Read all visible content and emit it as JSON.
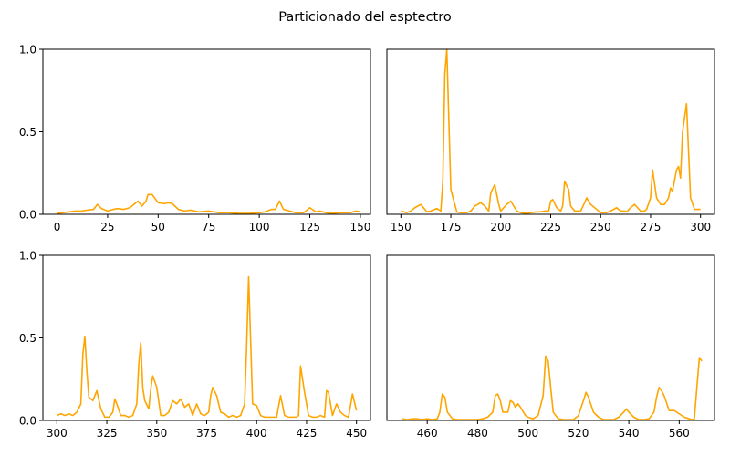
{
  "chart_data": {
    "title": "Particionado del esptectro",
    "line_color": "#ffa500",
    "subplots": [
      {
        "type": "line",
        "position": "top-left",
        "xlim": [
          -7,
          155
        ],
        "ylim": [
          0,
          1
        ],
        "xticks": [
          0,
          25,
          50,
          75,
          100,
          125,
          150
        ],
        "yticks": [
          0.0,
          0.5,
          1.0
        ],
        "ytick_labels": [
          "0.0",
          "0.5",
          "1.0"
        ],
        "show_yticks": true,
        "x": [
          0,
          3,
          6,
          9,
          12,
          15,
          18,
          20,
          22,
          25,
          28,
          30,
          33,
          36,
          40,
          42,
          44,
          45,
          47,
          50,
          53,
          55,
          57,
          60,
          63,
          66,
          70,
          75,
          80,
          85,
          90,
          95,
          100,
          103,
          106,
          108,
          110,
          112,
          115,
          118,
          120,
          122,
          125,
          128,
          130,
          133,
          136,
          140,
          145,
          148,
          150
        ],
        "y": [
          0.005,
          0.01,
          0.015,
          0.02,
          0.02,
          0.025,
          0.03,
          0.06,
          0.035,
          0.02,
          0.03,
          0.035,
          0.03,
          0.04,
          0.08,
          0.05,
          0.08,
          0.12,
          0.12,
          0.07,
          0.065,
          0.07,
          0.065,
          0.03,
          0.02,
          0.025,
          0.015,
          0.02,
          0.01,
          0.01,
          0.005,
          0.005,
          0.01,
          0.015,
          0.03,
          0.03,
          0.08,
          0.03,
          0.02,
          0.01,
          0.01,
          0.01,
          0.04,
          0.015,
          0.02,
          0.01,
          0.005,
          0.01,
          0.01,
          0.02,
          0.015
        ]
      },
      {
        "type": "line",
        "position": "top-right",
        "xlim": [
          143,
          307
        ],
        "ylim": [
          0,
          1
        ],
        "xticks": [
          150,
          175,
          200,
          225,
          250,
          275,
          300
        ],
        "yticks": [
          0.0,
          0.5,
          1.0
        ],
        "ytick_labels": [
          "0.0",
          "0.5",
          "1.0"
        ],
        "show_yticks": false,
        "x": [
          150,
          153,
          155,
          157,
          160,
          163,
          165,
          168,
          170,
          171,
          172,
          173,
          175,
          178,
          180,
          183,
          185,
          187,
          190,
          192,
          194,
          195,
          197,
          199,
          200,
          203,
          205,
          208,
          210,
          213,
          215,
          218,
          220,
          222,
          224,
          225,
          226,
          228,
          230,
          231,
          232,
          234,
          235,
          237,
          240,
          242,
          243,
          245,
          248,
          250,
          253,
          255,
          258,
          260,
          262,
          263,
          265,
          267,
          270,
          272,
          273,
          275,
          276,
          278,
          280,
          282,
          284,
          285,
          286,
          288,
          289,
          290,
          291,
          293,
          295,
          297,
          300
        ],
        "y": [
          0.02,
          0.01,
          0.02,
          0.04,
          0.06,
          0.015,
          0.02,
          0.035,
          0.02,
          0.2,
          0.85,
          1.0,
          0.15,
          0.015,
          0.01,
          0.01,
          0.02,
          0.05,
          0.07,
          0.05,
          0.02,
          0.13,
          0.18,
          0.06,
          0.02,
          0.06,
          0.08,
          0.02,
          0.01,
          0.005,
          0.01,
          0.015,
          0.015,
          0.02,
          0.02,
          0.08,
          0.09,
          0.04,
          0.02,
          0.05,
          0.2,
          0.15,
          0.05,
          0.02,
          0.02,
          0.07,
          0.1,
          0.06,
          0.03,
          0.01,
          0.01,
          0.02,
          0.04,
          0.02,
          0.02,
          0.015,
          0.04,
          0.06,
          0.02,
          0.02,
          0.03,
          0.1,
          0.27,
          0.1,
          0.06,
          0.06,
          0.1,
          0.16,
          0.14,
          0.27,
          0.29,
          0.22,
          0.5,
          0.67,
          0.1,
          0.03,
          0.03
        ]
      },
      {
        "type": "line",
        "position": "bottom-left",
        "xlim": [
          293,
          457
        ],
        "ylim": [
          0,
          1
        ],
        "xticks": [
          300,
          325,
          350,
          375,
          400,
          425,
          450
        ],
        "yticks": [
          0.0,
          0.5,
          1.0
        ],
        "ytick_labels": [
          "0.0",
          "0.5",
          "1.0"
        ],
        "show_yticks": true,
        "x": [
          300,
          302,
          304,
          306,
          308,
          310,
          312,
          313,
          314,
          315,
          316,
          318,
          320,
          322,
          324,
          326,
          328,
          329,
          330,
          332,
          334,
          336,
          338,
          340,
          341,
          342,
          343,
          344,
          346,
          347,
          348,
          350,
          352,
          354,
          356,
          358,
          360,
          362,
          364,
          366,
          368,
          370,
          372,
          374,
          376,
          377,
          378,
          380,
          382,
          384,
          386,
          388,
          390,
          392,
          394,
          395,
          396,
          398,
          400,
          402,
          404,
          406,
          408,
          410,
          412,
          414,
          416,
          418,
          420,
          421,
          422,
          424,
          426,
          428,
          430,
          432,
          434,
          435,
          436,
          438,
          440,
          442,
          444,
          446,
          448,
          450
        ],
        "y": [
          0.03,
          0.04,
          0.03,
          0.04,
          0.03,
          0.05,
          0.1,
          0.4,
          0.51,
          0.3,
          0.14,
          0.12,
          0.18,
          0.07,
          0.02,
          0.02,
          0.05,
          0.13,
          0.1,
          0.03,
          0.03,
          0.02,
          0.03,
          0.1,
          0.34,
          0.47,
          0.2,
          0.12,
          0.07,
          0.19,
          0.27,
          0.2,
          0.03,
          0.03,
          0.05,
          0.12,
          0.1,
          0.13,
          0.08,
          0.1,
          0.03,
          0.1,
          0.04,
          0.03,
          0.05,
          0.15,
          0.2,
          0.15,
          0.05,
          0.04,
          0.02,
          0.03,
          0.02,
          0.03,
          0.1,
          0.45,
          0.87,
          0.1,
          0.09,
          0.03,
          0.02,
          0.02,
          0.02,
          0.02,
          0.15,
          0.03,
          0.02,
          0.02,
          0.02,
          0.03,
          0.33,
          0.17,
          0.03,
          0.02,
          0.02,
          0.03,
          0.02,
          0.18,
          0.17,
          0.03,
          0.1,
          0.05,
          0.03,
          0.02,
          0.16,
          0.06
        ]
      },
      {
        "type": "line",
        "position": "bottom-right",
        "xlim": [
          444,
          574
        ],
        "ylim": [
          0,
          1
        ],
        "xticks": [
          460,
          480,
          500,
          520,
          540,
          560
        ],
        "yticks": [
          0.0,
          0.5,
          1.0
        ],
        "ytick_labels": [
          "0.0",
          "0.5",
          "1.0"
        ],
        "show_yticks": false,
        "x": [
          450,
          452,
          454,
          456,
          458,
          460,
          462,
          464,
          465,
          466,
          467,
          468,
          470,
          472,
          474,
          476,
          478,
          480,
          482,
          484,
          486,
          487,
          488,
          489,
          490,
          492,
          493,
          494,
          495,
          496,
          497,
          499,
          500,
          502,
          504,
          506,
          507,
          508,
          509,
          510,
          512,
          514,
          516,
          518,
          520,
          522,
          523,
          524,
          526,
          528,
          530,
          532,
          534,
          536,
          538,
          539,
          540,
          542,
          544,
          546,
          548,
          550,
          551,
          552,
          553,
          554,
          556,
          558,
          560,
          562,
          564,
          565,
          566,
          567,
          568,
          569
        ],
        "y": [
          0.01,
          0.005,
          0.01,
          0.01,
          0.005,
          0.01,
          0.005,
          0.01,
          0.05,
          0.16,
          0.14,
          0.05,
          0.01,
          0.005,
          0.005,
          0.005,
          0.005,
          0.005,
          0.01,
          0.02,
          0.05,
          0.15,
          0.16,
          0.12,
          0.05,
          0.05,
          0.12,
          0.11,
          0.08,
          0.1,
          0.08,
          0.03,
          0.02,
          0.01,
          0.03,
          0.15,
          0.39,
          0.36,
          0.2,
          0.05,
          0.01,
          0.005,
          0.005,
          0.005,
          0.03,
          0.12,
          0.17,
          0.14,
          0.05,
          0.02,
          0.005,
          0.005,
          0.005,
          0.02,
          0.05,
          0.07,
          0.05,
          0.02,
          0.005,
          0.005,
          0.01,
          0.05,
          0.14,
          0.2,
          0.18,
          0.15,
          0.06,
          0.06,
          0.04,
          0.02,
          0.01,
          0.005,
          0.01,
          0.2,
          0.38,
          0.36
        ]
      }
    ]
  }
}
